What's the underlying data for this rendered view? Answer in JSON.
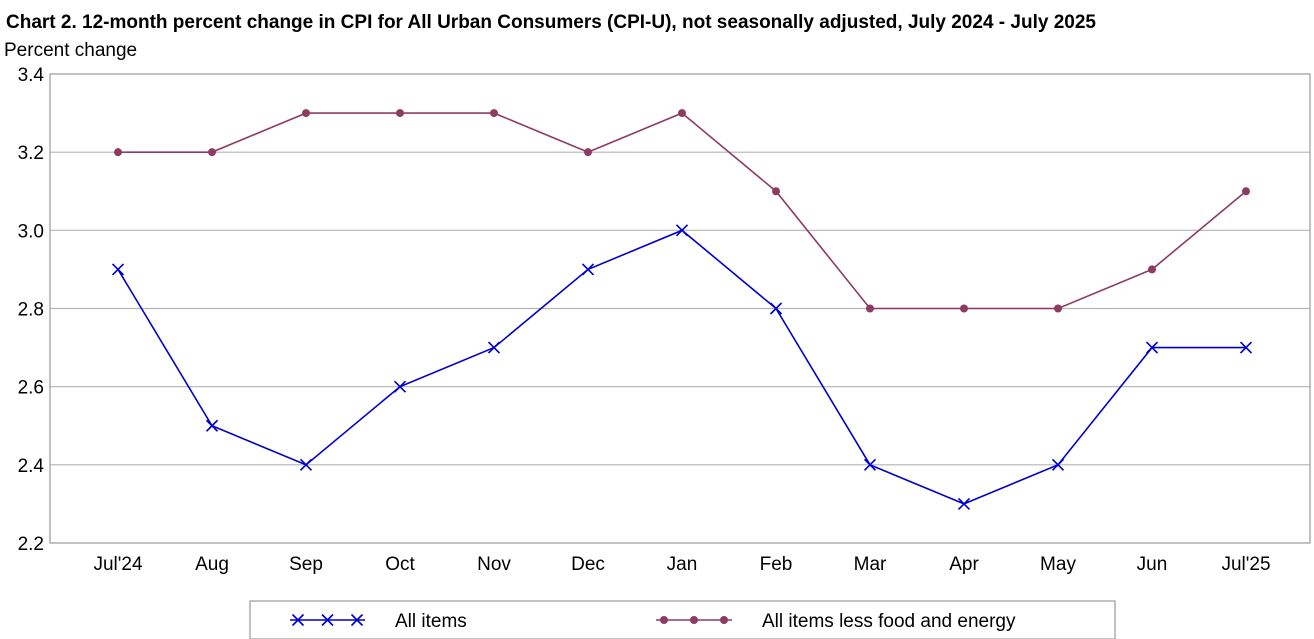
{
  "chart_data": {
    "type": "line",
    "title": "Chart 2. 12-month percent change in CPI for All Urban Consumers (CPI-U), not seasonally adjusted, July 2024 - July 2025",
    "ylabel": "Percent change",
    "xlabel": "",
    "categories": [
      "Jul'24",
      "Aug",
      "Sep",
      "Oct",
      "Nov",
      "Dec",
      "Jan",
      "Feb",
      "Mar",
      "Apr",
      "May",
      "Jun",
      "Jul'25"
    ],
    "ylim": [
      2.2,
      3.4
    ],
    "yticks": [
      "2.2",
      "2.4",
      "2.6",
      "2.8",
      "3.0",
      "3.2",
      "3.4"
    ],
    "grid": "horizontal",
    "legend_position": "bottom",
    "series": [
      {
        "name": "All items",
        "color": "#0000cc",
        "marker": "x",
        "values": [
          2.9,
          2.5,
          2.4,
          2.6,
          2.7,
          2.9,
          3.0,
          2.8,
          2.4,
          2.3,
          2.4,
          2.7,
          2.7
        ]
      },
      {
        "name": "All items less food and energy",
        "color": "#8e3b63",
        "marker": "circle",
        "values": [
          3.2,
          3.2,
          3.3,
          3.3,
          3.3,
          3.2,
          3.3,
          3.1,
          2.8,
          2.8,
          2.8,
          2.9,
          3.1
        ]
      }
    ]
  }
}
